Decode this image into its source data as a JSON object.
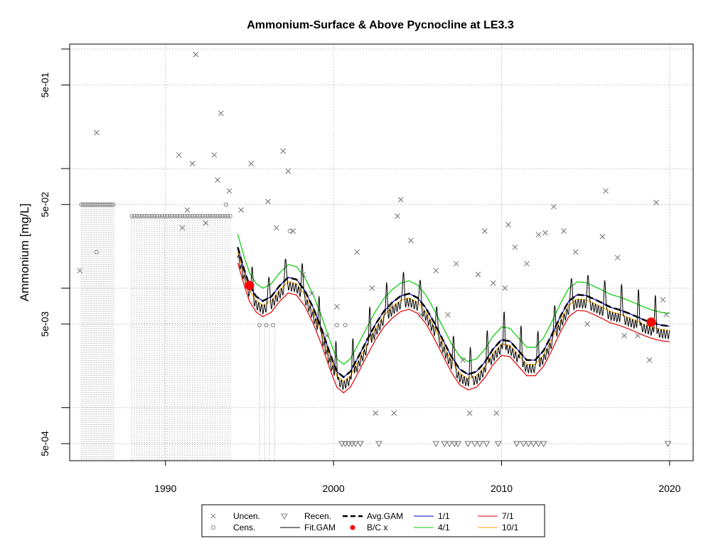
{
  "chart_data": {
    "type": "line",
    "title": "Ammonium-Surface & Above Pycnocline at LE3.3",
    "xlabel": "",
    "ylabel": "Ammonium [mg/L]",
    "yscale": "log",
    "xlim": [
      1984.3,
      2021.4
    ],
    "ylim": [
      0.00036,
      1.1
    ],
    "grid": true,
    "x_ticks": [
      {
        "value": 1990,
        "label": "1990"
      },
      {
        "value": 2000,
        "label": "2000"
      },
      {
        "value": 2010,
        "label": "2010"
      },
      {
        "value": 2020,
        "label": "2020"
      }
    ],
    "y_ticks": [
      {
        "value": 0.0005,
        "label": "5e-04",
        "labeled": true
      },
      {
        "value": 0.001,
        "label": "",
        "labeled": false
      },
      {
        "value": 0.005,
        "label": "5e-03",
        "labeled": true
      },
      {
        "value": 0.01,
        "label": "",
        "labeled": false
      },
      {
        "value": 0.05,
        "label": "5e-02",
        "labeled": true
      },
      {
        "value": 0.1,
        "label": "",
        "labeled": false
      },
      {
        "value": 0.5,
        "label": "5e-01",
        "labeled": true
      },
      {
        "value": 1.0,
        "label": "",
        "labeled": false
      }
    ],
    "legend_placement": "bottom",
    "legend": [
      {
        "label": "Uncen.",
        "kind": "x-mark",
        "color": "#808080"
      },
      {
        "label": "Cens.",
        "kind": "circle",
        "color": "#808080"
      },
      {
        "label": "Recen.",
        "kind": "triangle-down",
        "color": "#808080"
      },
      {
        "label": "Fit.GAM",
        "kind": "line",
        "color": "#000000"
      },
      {
        "label": "Avg.GAM",
        "kind": "dashed-line",
        "color": "#000000"
      },
      {
        "label": "B/C x",
        "kind": "dot",
        "color": "#ff0000"
      },
      {
        "label": "1/1",
        "kind": "line",
        "color": "#0000cc"
      },
      {
        "label": "4/1",
        "kind": "line",
        "color": "#00cc00"
      },
      {
        "label": "7/1",
        "kind": "line",
        "color": "#dd0000"
      },
      {
        "label": "10/1",
        "kind": "line",
        "color": "#ffa500"
      }
    ],
    "avg_gam": [
      [
        1994.3,
        0.022
      ],
      [
        1994.7,
        0.014
      ],
      [
        1995.0,
        0.0105
      ],
      [
        1995.4,
        0.0085
      ],
      [
        1995.8,
        0.0078
      ],
      [
        1996.3,
        0.0085
      ],
      [
        1996.8,
        0.0105
      ],
      [
        1997.3,
        0.0123
      ],
      [
        1997.8,
        0.0118
      ],
      [
        1998.3,
        0.0095
      ],
      [
        1998.8,
        0.0068
      ],
      [
        1999.3,
        0.0045
      ],
      [
        1999.8,
        0.0028
      ],
      [
        2000.2,
        0.002
      ],
      [
        2000.6,
        0.0018
      ],
      [
        2001.0,
        0.002
      ],
      [
        2001.5,
        0.0027
      ],
      [
        2002.0,
        0.0037
      ],
      [
        2002.5,
        0.005
      ],
      [
        2003.0,
        0.0064
      ],
      [
        2003.5,
        0.0076
      ],
      [
        2004.0,
        0.0086
      ],
      [
        2004.5,
        0.009
      ],
      [
        2005.0,
        0.0083
      ],
      [
        2005.5,
        0.0068
      ],
      [
        2006.0,
        0.0051
      ],
      [
        2006.5,
        0.0037
      ],
      [
        2007.0,
        0.0027
      ],
      [
        2007.5,
        0.0021
      ],
      [
        2008.0,
        0.0019
      ],
      [
        2008.5,
        0.002
      ],
      [
        2009.0,
        0.0024
      ],
      [
        2009.5,
        0.0031
      ],
      [
        2010.0,
        0.0037
      ],
      [
        2010.5,
        0.0036
      ],
      [
        2011.0,
        0.003
      ],
      [
        2011.5,
        0.0025
      ],
      [
        2012.0,
        0.0025
      ],
      [
        2012.5,
        0.003
      ],
      [
        2013.0,
        0.0041
      ],
      [
        2013.5,
        0.0058
      ],
      [
        2014.0,
        0.0078
      ],
      [
        2014.5,
        0.0088
      ],
      [
        2015.0,
        0.0087
      ],
      [
        2015.5,
        0.0081
      ],
      [
        2016.0,
        0.0075
      ],
      [
        2016.5,
        0.0069
      ],
      [
        2017.0,
        0.0066
      ],
      [
        2017.5,
        0.0062
      ],
      [
        2018.0,
        0.0058
      ],
      [
        2018.5,
        0.0054
      ],
      [
        2019.0,
        0.0051
      ],
      [
        2019.5,
        0.0049
      ],
      [
        2020.0,
        0.0048
      ]
    ],
    "series": [
      {
        "name": "1/1",
        "color": "#0000cc",
        "offset": 1.0
      },
      {
        "name": "4/1",
        "color": "#00cc00",
        "offset": 1.28
      },
      {
        "name": "7/1",
        "color": "#dd0000",
        "offset": 0.74
      },
      {
        "name": "10/1",
        "color": "#ffa500",
        "offset": 0.92
      }
    ],
    "fit_gam_amplitude": 1.9,
    "bc_points": [
      {
        "x": 1995.0,
        "y": 0.0105
      },
      {
        "x": 2018.9,
        "y": 0.0052
      }
    ],
    "uncensored": [
      [
        1984.9,
        0.014
      ],
      [
        1985.9,
        0.2
      ],
      [
        1990.8,
        0.13
      ],
      [
        1991.0,
        0.032
      ],
      [
        1991.3,
        0.045
      ],
      [
        1991.8,
        0.9
      ],
      [
        1991.6,
        0.11
      ],
      [
        1992.4,
        0.035
      ],
      [
        1992.9,
        0.13
      ],
      [
        1993.3,
        0.29
      ],
      [
        1993.1,
        0.08
      ],
      [
        1993.8,
        0.065
      ],
      [
        1994.5,
        0.045
      ],
      [
        1995.1,
        0.11
      ],
      [
        1996.1,
        0.053
      ],
      [
        1996.6,
        0.032
      ],
      [
        1997.0,
        0.14
      ],
      [
        1997.3,
        0.095
      ],
      [
        1997.6,
        0.03
      ],
      [
        1998.2,
        0.013
      ],
      [
        1998.7,
        0.009
      ],
      [
        1999.6,
        0.004
      ],
      [
        2000.2,
        0.007
      ],
      [
        2001.4,
        0.02
      ],
      [
        2002.3,
        0.01
      ],
      [
        2002.5,
        0.0009
      ],
      [
        2003.4,
        0.007
      ],
      [
        2003.6,
        0.0009
      ],
      [
        2003.8,
        0.04
      ],
      [
        2004.0,
        0.055
      ],
      [
        2004.6,
        0.025
      ],
      [
        2005.2,
        0.006
      ],
      [
        2006.1,
        0.014
      ],
      [
        2006.8,
        0.006
      ],
      [
        2007.3,
        0.016
      ],
      [
        2007.7,
        0.0025
      ],
      [
        2008.1,
        0.0009
      ],
      [
        2008.6,
        0.013
      ],
      [
        2009.0,
        0.03
      ],
      [
        2009.5,
        0.011
      ],
      [
        2009.7,
        0.0009
      ],
      [
        2010.2,
        0.01
      ],
      [
        2010.4,
        0.034
      ],
      [
        2010.8,
        0.022
      ],
      [
        2011.5,
        0.016
      ],
      [
        2012.2,
        0.028
      ],
      [
        2012.6,
        0.029
      ],
      [
        2013.1,
        0.048
      ],
      [
        2013.7,
        0.03
      ],
      [
        2014.4,
        0.02
      ],
      [
        2015.1,
        0.005
      ],
      [
        2016.0,
        0.027
      ],
      [
        2016.2,
        0.065
      ],
      [
        2016.9,
        0.018
      ],
      [
        2017.3,
        0.004
      ],
      [
        2018.1,
        0.004
      ],
      [
        2018.8,
        0.0025
      ],
      [
        2019.2,
        0.052
      ],
      [
        2019.6,
        0.008
      ],
      [
        2019.8,
        0.006
      ]
    ],
    "censored": [
      [
        1985.9,
        0.02
      ],
      [
        1993.6,
        0.05
      ],
      [
        1995.6,
        0.0049
      ],
      [
        1996.0,
        0.0049
      ],
      [
        1996.4,
        0.0049
      ],
      [
        1997.4,
        0.03
      ],
      [
        2000.2,
        0.0049
      ],
      [
        2000.7,
        0.0049
      ]
    ],
    "recensored": [
      [
        2000.5,
        0.0005
      ],
      [
        2000.7,
        0.0005
      ],
      [
        2000.9,
        0.0005
      ],
      [
        2001.1,
        0.0005
      ],
      [
        2001.3,
        0.0005
      ],
      [
        2001.6,
        0.0005
      ],
      [
        2002.7,
        0.0005
      ],
      [
        2006.1,
        0.0005
      ],
      [
        2006.6,
        0.0005
      ],
      [
        2006.9,
        0.0005
      ],
      [
        2007.2,
        0.0005
      ],
      [
        2007.4,
        0.0005
      ],
      [
        2008.0,
        0.0005
      ],
      [
        2008.4,
        0.0005
      ],
      [
        2008.7,
        0.0005
      ],
      [
        2009.1,
        0.0005
      ],
      [
        2009.8,
        0.0005
      ],
      [
        2010.9,
        0.0005
      ],
      [
        2011.3,
        0.0005
      ],
      [
        2011.6,
        0.0005
      ],
      [
        2011.9,
        0.0005
      ],
      [
        2012.2,
        0.0005
      ],
      [
        2012.5,
        0.0005
      ],
      [
        2019.9,
        0.0005
      ]
    ]
  }
}
